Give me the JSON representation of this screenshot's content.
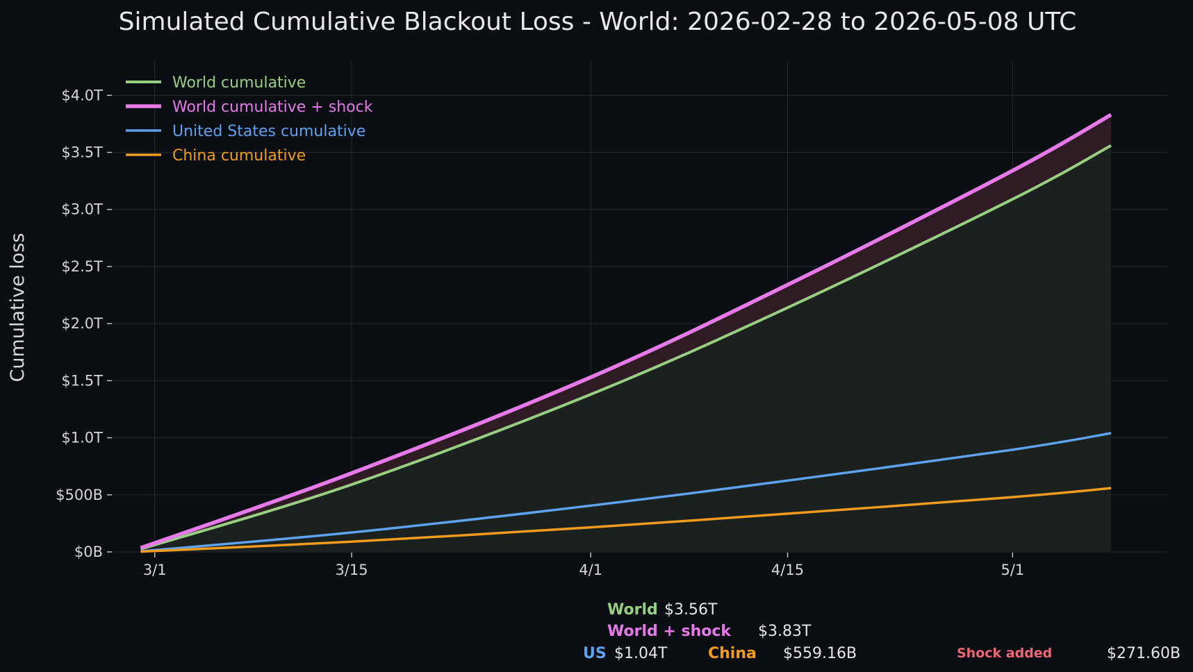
{
  "chart_data": {
    "type": "line",
    "title": "Simulated Cumulative Blackout Loss - World: 2026-02-28 to 2026-05-08 UTC",
    "xlabel": "",
    "ylabel": "Cumulative loss",
    "x_start": "2026-02-28",
    "x_end": "2026-05-08",
    "xlim": [
      "2026-02-26",
      "2026-05-12"
    ],
    "ylim": [
      0,
      4300
    ],
    "y_unit": "billions USD",
    "x_ticks": [
      {
        "date": "2026-03-01",
        "label": "3/1"
      },
      {
        "date": "2026-03-15",
        "label": "3/15"
      },
      {
        "date": "2026-04-01",
        "label": "4/1"
      },
      {
        "date": "2026-04-15",
        "label": "4/15"
      },
      {
        "date": "2026-05-01",
        "label": "5/1"
      }
    ],
    "y_ticks": [
      {
        "value": 0,
        "label": "$0B"
      },
      {
        "value": 500,
        "label": "$500B"
      },
      {
        "value": 1000,
        "label": "$1.0T"
      },
      {
        "value": 1500,
        "label": "$1.5T"
      },
      {
        "value": 2000,
        "label": "$2.0T"
      },
      {
        "value": 2500,
        "label": "$2.5T"
      },
      {
        "value": 3000,
        "label": "$3.0T"
      },
      {
        "value": 3500,
        "label": "$3.5T"
      },
      {
        "value": 4000,
        "label": "$4.0T"
      }
    ],
    "grid": true,
    "legend_position": "top-left",
    "series": [
      {
        "name": "World cumulative",
        "color": "#98cf82",
        "width": 4,
        "fill": "#1c2320",
        "points": [
          {
            "x": "2026-02-28",
            "y": 25
          },
          {
            "x": "2026-03-15",
            "y": 590
          },
          {
            "x": "2026-04-01",
            "y": 1380
          },
          {
            "x": "2026-04-15",
            "y": 2140
          },
          {
            "x": "2026-05-01",
            "y": 3090
          },
          {
            "x": "2026-05-08",
            "y": 3560
          }
        ]
      },
      {
        "name": "World cumulative + shock",
        "color": "#e57ae8",
        "width": 5.5,
        "fill": "#301c26",
        "points": [
          {
            "x": "2026-02-28",
            "y": 35
          },
          {
            "x": "2026-03-15",
            "y": 690
          },
          {
            "x": "2026-04-01",
            "y": 1530
          },
          {
            "x": "2026-04-15",
            "y": 2340
          },
          {
            "x": "2026-05-01",
            "y": 3340
          },
          {
            "x": "2026-05-08",
            "y": 3830
          }
        ]
      },
      {
        "name": "United States cumulative",
        "color": "#5ea2f0",
        "width": 3.5,
        "points": [
          {
            "x": "2026-02-28",
            "y": 5
          },
          {
            "x": "2026-03-15",
            "y": 170
          },
          {
            "x": "2026-04-01",
            "y": 405
          },
          {
            "x": "2026-04-15",
            "y": 625
          },
          {
            "x": "2026-05-01",
            "y": 895
          },
          {
            "x": "2026-05-08",
            "y": 1040
          }
        ]
      },
      {
        "name": "China cumulative",
        "color": "#f29c1f",
        "width": 3.5,
        "points": [
          {
            "x": "2026-02-28",
            "y": 2
          },
          {
            "x": "2026-03-15",
            "y": 90
          },
          {
            "x": "2026-04-01",
            "y": 215
          },
          {
            "x": "2026-04-15",
            "y": 335
          },
          {
            "x": "2026-05-01",
            "y": 480
          },
          {
            "x": "2026-05-08",
            "y": 559
          }
        ]
      }
    ]
  },
  "summary": {
    "world": {
      "label": "World",
      "value": "$3.56T",
      "color": "#98cf82"
    },
    "world_shock": {
      "label": "World + shock",
      "value": "$3.83T",
      "color": "#e57ae8"
    },
    "us": {
      "label": "US",
      "value": "$1.04T",
      "color": "#5ea2f0"
    },
    "china": {
      "label": "China",
      "value": "$559.16B",
      "color": "#f29c1f"
    },
    "shock_added": {
      "label": "Shock added",
      "value": "$271.60B",
      "color": "#ee6677"
    }
  }
}
